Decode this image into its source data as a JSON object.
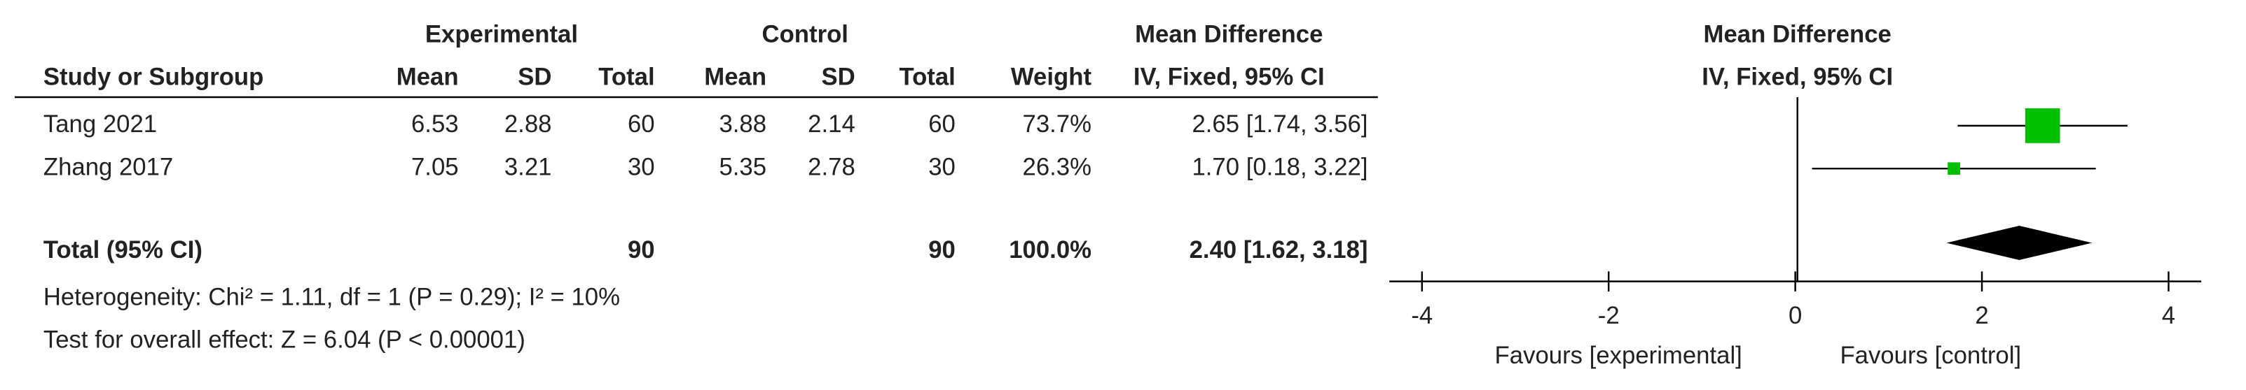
{
  "chart_data": {
    "type": "forest",
    "headers": {
      "group_experimental": "Experimental",
      "group_control": "Control",
      "group_md": "Mean Difference",
      "study": "Study or Subgroup",
      "mean": "Mean",
      "sd": "SD",
      "total": "Total",
      "weight": "Weight",
      "method": "IV, Fixed, 95% CI",
      "plot_title": "Mean Difference",
      "plot_method": "IV, Fixed, 95% CI"
    },
    "studies": [
      {
        "name": "Tang 2021",
        "exp_mean": 6.53,
        "exp_sd": 2.88,
        "exp_total": 60,
        "ctrl_mean": 3.88,
        "ctrl_sd": 2.14,
        "ctrl_total": 60,
        "weight": 73.7,
        "weight_label": "73.7%",
        "md": 2.65,
        "ci_lower": 1.74,
        "ci_upper": 3.56,
        "ci_label": "2.65 [1.74, 3.56]"
      },
      {
        "name": "Zhang 2017",
        "exp_mean": 7.05,
        "exp_sd": 3.21,
        "exp_total": 30,
        "ctrl_mean": 5.35,
        "ctrl_sd": 2.78,
        "ctrl_total": 30,
        "weight": 26.3,
        "weight_label": "26.3%",
        "md": 1.7,
        "ci_lower": 0.18,
        "ci_upper": 3.22,
        "ci_label": "1.70 [0.18, 3.22]"
      }
    ],
    "total": {
      "name": "Total (95% CI)",
      "exp_total": 90,
      "ctrl_total": 90,
      "weight": 100,
      "weight_label": "100.0%",
      "md": 2.4,
      "ci_lower": 1.62,
      "ci_upper": 3.18,
      "ci_label": "2.40 [1.62, 3.18]"
    },
    "heterogeneity": "Heterogeneity: Chi² = 1.11, df = 1 (P = 0.29); I² = 10%",
    "overall_effect": "Test for overall effect: Z = 6.04 (P < 0.00001)",
    "xlim": [
      -4.35,
      4.35
    ],
    "xticks": [
      -4,
      -2,
      0,
      2,
      4
    ],
    "favours_left": "Favours [experimental]",
    "favours_right": "Favours [control]",
    "square_color": "#00c000",
    "diamond_color": "#000000"
  }
}
